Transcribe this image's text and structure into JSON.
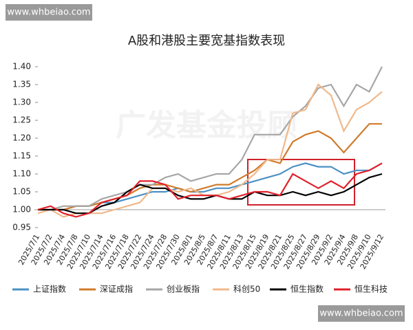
{
  "chart_data": {
    "type": "line",
    "title": "A股和港股主要宽基指数表现",
    "watermarks": [
      "www.whbeiao.com",
      "广发基金投顾",
      "www.whbeiao.com"
    ],
    "categories": [
      "2025/7/1",
      "2025/7/2",
      "2025/7/4",
      "2025/7/8",
      "2025/7/10",
      "2025/7/14",
      "2025/7/16",
      "2025/7/18",
      "2025/7/22",
      "2025/7/24",
      "2025/7/28",
      "2025/7/30",
      "2025/8/1",
      "2025/8/5",
      "2025/8/7",
      "2025/8/11",
      "2025/8/13",
      "2025/8/15",
      "2025/8/19",
      "2025/8/21",
      "2025/8/25",
      "2025/8/27",
      "2025/8/29",
      "2025/9/2",
      "2025/9/4",
      "2025/9/8",
      "2025/9/10",
      "2025/9/12"
    ],
    "series": [
      {
        "name": "上证指数",
        "color": "#4a90c4",
        "values": [
          1.0,
          1.0,
          1.0,
          1.01,
          1.01,
          1.02,
          1.02,
          1.03,
          1.04,
          1.05,
          1.05,
          1.06,
          1.05,
          1.05,
          1.06,
          1.06,
          1.07,
          1.08,
          1.09,
          1.1,
          1.12,
          1.13,
          1.12,
          1.12,
          1.1,
          1.11,
          1.11,
          1.13
        ]
      },
      {
        "name": "深证成指",
        "color": "#d07a2a",
        "values": [
          1.0,
          1.0,
          1.0,
          1.01,
          1.01,
          1.02,
          1.03,
          1.04,
          1.06,
          1.07,
          1.07,
          1.06,
          1.05,
          1.06,
          1.07,
          1.07,
          1.09,
          1.11,
          1.14,
          1.13,
          1.19,
          1.21,
          1.22,
          1.2,
          1.16,
          1.2,
          1.24,
          1.24
        ]
      },
      {
        "name": "创业板指",
        "color": "#a6a6a6",
        "values": [
          1.0,
          1.0,
          1.01,
          1.01,
          1.01,
          1.03,
          1.04,
          1.05,
          1.07,
          1.07,
          1.09,
          1.1,
          1.08,
          1.09,
          1.1,
          1.1,
          1.14,
          1.21,
          1.21,
          1.21,
          1.26,
          1.29,
          1.34,
          1.35,
          1.29,
          1.35,
          1.33,
          1.4
        ]
      },
      {
        "name": "科创50",
        "color": "#f0b88a",
        "values": [
          0.99,
          1.0,
          0.98,
          0.99,
          0.99,
          0.99,
          1.0,
          1.01,
          1.02,
          1.06,
          1.06,
          1.05,
          1.06,
          1.04,
          1.04,
          1.05,
          1.07,
          1.1,
          1.14,
          1.14,
          1.27,
          1.28,
          1.35,
          1.32,
          1.22,
          1.28,
          1.3,
          1.33
        ]
      },
      {
        "name": "恒生指数",
        "color": "#000000",
        "values": [
          1.0,
          1.0,
          1.0,
          0.99,
          0.99,
          1.01,
          1.02,
          1.05,
          1.07,
          1.06,
          1.06,
          1.04,
          1.03,
          1.03,
          1.04,
          1.03,
          1.03,
          1.05,
          1.04,
          1.04,
          1.05,
          1.04,
          1.05,
          1.04,
          1.05,
          1.07,
          1.09,
          1.1
        ]
      },
      {
        "name": "恒生科技",
        "color": "#e0202a",
        "values": [
          1.0,
          1.01,
          0.99,
          0.98,
          0.99,
          1.02,
          1.03,
          1.04,
          1.08,
          1.08,
          1.07,
          1.03,
          1.04,
          1.04,
          1.04,
          1.03,
          1.04,
          1.05,
          1.05,
          1.04,
          1.1,
          1.08,
          1.06,
          1.08,
          1.06,
          1.1,
          1.11,
          1.13
        ]
      }
    ],
    "ylim": [
      0.95,
      1.4
    ],
    "yticks": [
      {
        "value": 0.95,
        "label": "0.95"
      },
      {
        "value": 1.0,
        "label": "1.00"
      },
      {
        "value": 1.05,
        "label": "1.05"
      },
      {
        "value": 1.1,
        "label": "1.10"
      },
      {
        "value": 1.15,
        "label": "1.15"
      },
      {
        "value": 1.2,
        "label": "1.20"
      },
      {
        "value": 1.25,
        "label": "1.25"
      },
      {
        "value": 1.3,
        "label": "1.30"
      },
      {
        "value": 1.35,
        "label": "1.35"
      },
      {
        "value": 1.4,
        "label": "1.40"
      }
    ],
    "grid": false,
    "legend": "bottom"
  }
}
